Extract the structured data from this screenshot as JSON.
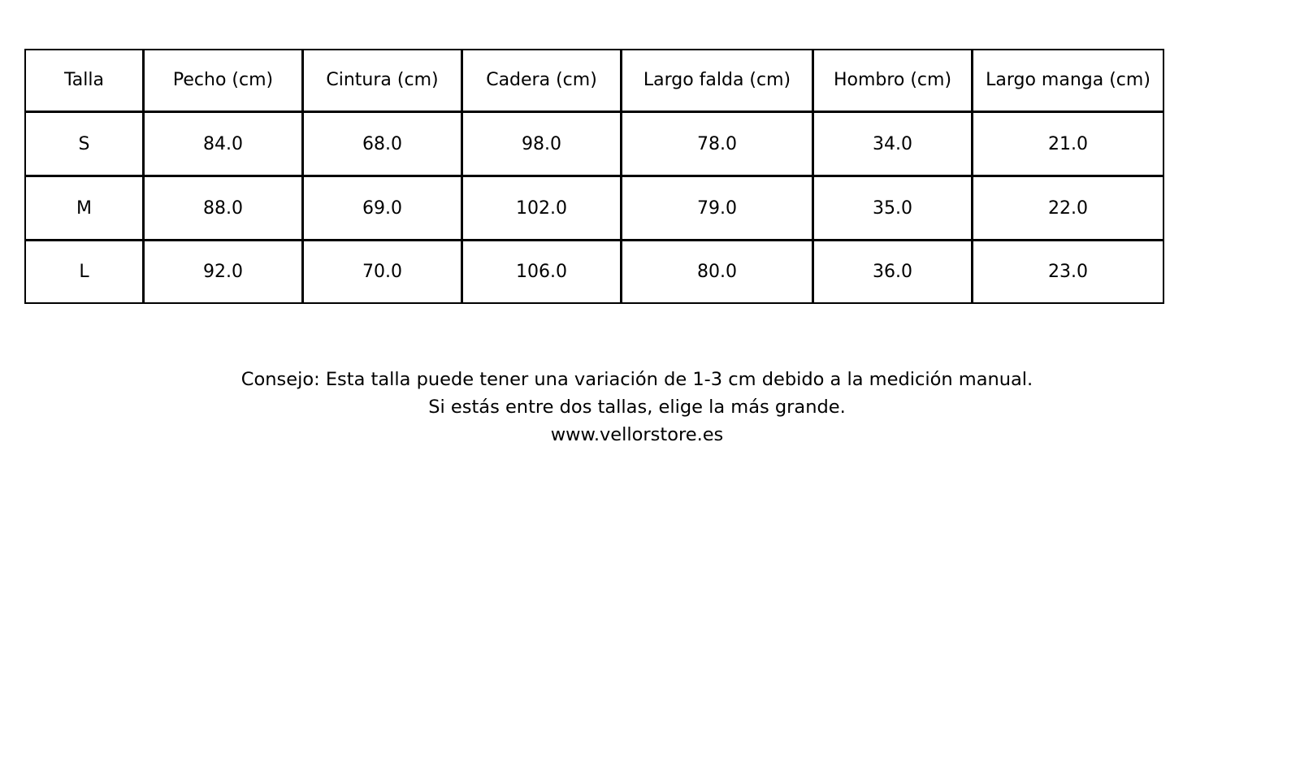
{
  "table": {
    "headers": [
      "Talla",
      "Pecho (cm)",
      "Cintura (cm)",
      "Cadera (cm)",
      "Largo falda (cm)",
      "Hombro (cm)",
      "Largo manga (cm)"
    ],
    "rows": [
      [
        "S",
        "84.0",
        "68.0",
        "98.0",
        "78.0",
        "34.0",
        "21.0"
      ],
      [
        "M",
        "88.0",
        "69.0",
        "102.0",
        "79.0",
        "35.0",
        "22.0"
      ],
      [
        "L",
        "92.0",
        "70.0",
        "106.0",
        "80.0",
        "36.0",
        "23.0"
      ]
    ]
  },
  "note": {
    "line1": "Consejo: Esta talla puede tener una variación de 1-3 cm debido a la medición manual.",
    "line2": "Si estás entre dos tallas, elige la más grande.",
    "line3": "www.vellorstore.es"
  }
}
